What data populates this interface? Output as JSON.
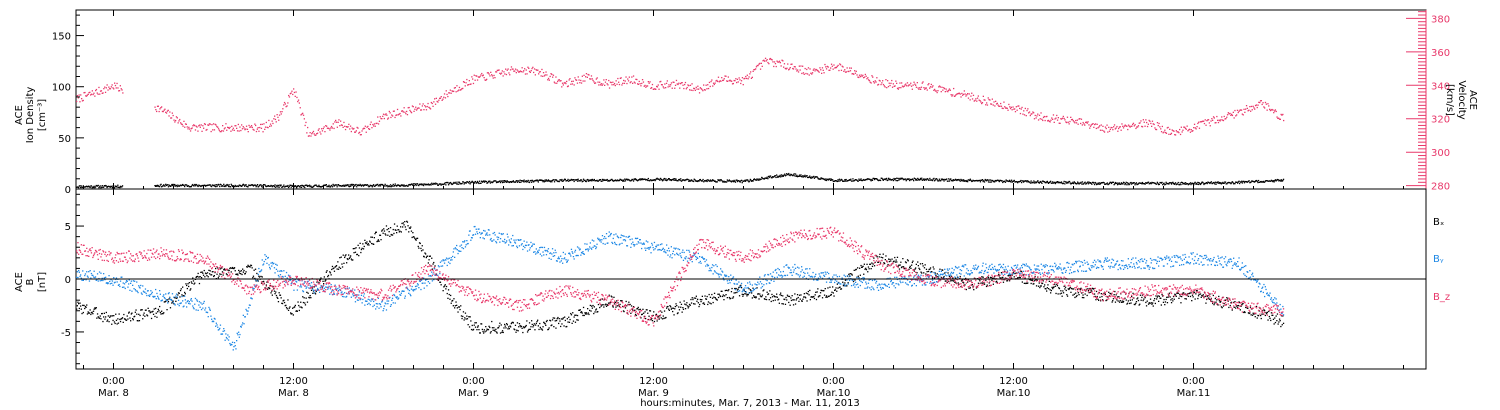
{
  "chart_data": [
    {
      "type": "scatter",
      "panel": "top",
      "ylabel_left": [
        "ACE",
        "Ion Density",
        "[cm⁻³]"
      ],
      "ylabel_right": [
        "ACE",
        "Velocity",
        "[km/s]"
      ],
      "ylim_left": [
        0,
        175
      ],
      "yticks_left": [
        "0",
        "50",
        "100",
        "150"
      ],
      "ylim_right": [
        278,
        385
      ],
      "yticks_right": [
        "280",
        "300",
        "320",
        "340",
        "360",
        "380"
      ],
      "series": [
        {
          "name": "Velocity",
          "axis": "right",
          "color": "#e8386a",
          "x": [
            -2.5,
            0.0,
            3.3,
            5.0,
            7.0,
            10.0,
            11.0,
            12.0,
            13.0,
            15.0,
            16.5,
            18.0,
            19.5,
            21.0,
            22.5,
            24.0,
            25.5,
            27.0,
            28.5,
            30.0,
            31.5,
            33.0,
            34.5,
            36.0,
            37.5,
            39.0,
            40.5,
            42.0,
            43.5,
            45.0,
            46.5,
            48.0,
            49.5,
            51.0,
            52.5,
            54.0,
            55.5,
            57.0,
            58.5,
            60.0,
            61.5,
            63.0,
            64.5,
            66.0,
            67.5,
            69.0,
            70.5,
            72.0,
            73.5,
            75.0,
            76.5,
            78.0
          ],
          "y": [
            332,
            340,
            325,
            315,
            315,
            315,
            322,
            338,
            310,
            318,
            312,
            322,
            325,
            328,
            337,
            344,
            347,
            350,
            348,
            341,
            345,
            341,
            344,
            340,
            341,
            338,
            344,
            343,
            355,
            352,
            348,
            352,
            348,
            342,
            340,
            340,
            337,
            334,
            330,
            327,
            322,
            320,
            318,
            314,
            316,
            318,
            312,
            315,
            320,
            324,
            330,
            320
          ]
        },
        {
          "name": "Ion Density",
          "axis": "left",
          "color": "#000000",
          "x": [
            -2.5,
            0.0,
            3.0,
            6.0,
            9.0,
            12.0,
            15.0,
            18.0,
            21.0,
            24.0,
            27.0,
            30.0,
            33.0,
            36.0,
            39.0,
            42.0,
            45.0,
            48.0,
            51.0,
            54.0,
            57.0,
            60.0,
            63.0,
            66.0,
            69.0,
            72.0,
            75.0,
            78.0
          ],
          "y": [
            3,
            3,
            4,
            4,
            4,
            3,
            4,
            4,
            5,
            7,
            8,
            9,
            9,
            10,
            9,
            8,
            15,
            9,
            10,
            10,
            9,
            8,
            7,
            6,
            6,
            6,
            7,
            9
          ]
        }
      ]
    },
    {
      "type": "scatter",
      "panel": "bottom",
      "ylabel_left": [
        "ACE",
        "B",
        "[nT]"
      ],
      "ylim": [
        -8.5,
        8.5
      ],
      "yticks": [
        "-5",
        "0",
        "5"
      ],
      "legend_position": "right",
      "legend": [
        "Bₓ",
        "Bᵧ",
        "B_z"
      ],
      "series": [
        {
          "name": "Bx",
          "color": "#000000",
          "x": [
            -2.5,
            0.0,
            3.0,
            6.0,
            9.0,
            12.0,
            15.0,
            18.0,
            19.5,
            21.0,
            22.5,
            24.0,
            27.0,
            30.0,
            33.0,
            36.0,
            39.0,
            42.0,
            45.0,
            48.0,
            51.0,
            54.0,
            57.0,
            60.0,
            63.0,
            66.0,
            69.0,
            72.0,
            75.0,
            78.0
          ],
          "y": [
            -2.5,
            -3.8,
            -3.0,
            0.5,
            1.0,
            -3.0,
            1.5,
            4.5,
            5.0,
            2.0,
            -2.0,
            -4.5,
            -4.5,
            -4.0,
            -2.0,
            -3.5,
            -2.0,
            -1.0,
            -2.0,
            -1.0,
            2.0,
            1.0,
            -0.5,
            0.5,
            -1.0,
            -1.5,
            -2.0,
            -1.5,
            -2.5,
            -4.0
          ]
        },
        {
          "name": "By",
          "color": "#1e88e5",
          "x": [
            -2.5,
            0.0,
            3.0,
            6.0,
            8.0,
            10.0,
            12.0,
            15.0,
            18.0,
            21.0,
            24.0,
            27.0,
            30.0,
            33.0,
            36.0,
            39.0,
            42.0,
            45.0,
            48.0,
            51.0,
            54.0,
            57.0,
            60.0,
            63.0,
            66.0,
            69.0,
            72.0,
            75.0,
            78.0
          ],
          "y": [
            0.5,
            0.0,
            -1.5,
            -2.5,
            -6.5,
            2.0,
            -0.5,
            -1.0,
            -2.5,
            0.0,
            4.5,
            3.5,
            2.0,
            4.0,
            3.0,
            2.0,
            -1.0,
            1.0,
            0.0,
            -0.5,
            0.0,
            1.0,
            1.0,
            1.0,
            1.5,
            1.5,
            2.0,
            1.5,
            -3.0
          ]
        },
        {
          "name": "Bz",
          "color": "#e8386a",
          "x": [
            -2.5,
            0.0,
            3.0,
            6.0,
            9.0,
            12.0,
            15.0,
            18.0,
            21.0,
            24.0,
            27.0,
            30.0,
            33.0,
            36.0,
            39.0,
            42.0,
            45.0,
            48.0,
            51.0,
            54.0,
            57.0,
            60.0,
            63.0,
            66.0,
            69.0,
            72.0,
            75.0,
            78.0
          ],
          "y": [
            3.0,
            2.0,
            2.5,
            2.0,
            -1.0,
            0.0,
            -1.0,
            -1.5,
            1.0,
            -1.5,
            -2.5,
            -1.0,
            -2.0,
            -4.0,
            3.5,
            2.0,
            4.0,
            4.5,
            1.5,
            0.0,
            -0.5,
            0.5,
            0.0,
            -1.5,
            -1.0,
            -1.0,
            -2.5,
            -3.0
          ]
        }
      ]
    }
  ],
  "x_axis": {
    "title": "hours:minutes, Mar. 7, 2013 - Mar. 11, 2013",
    "ticks": [
      {
        "h": 0,
        "t1": "0:00",
        "t2": "Mar. 8"
      },
      {
        "h": 12,
        "t1": "12:00",
        "t2": "Mar. 8"
      },
      {
        "h": 24,
        "t1": "0:00",
        "t2": "Mar. 9"
      },
      {
        "h": 36,
        "t1": "12:00",
        "t2": "Mar. 9"
      },
      {
        "h": 48,
        "t1": "0:00",
        "t2": "Mar.10"
      },
      {
        "h": 60,
        "t1": "12:00",
        "t2": "Mar.10"
      },
      {
        "h": 72,
        "t1": "0:00",
        "t2": "Mar.11"
      }
    ],
    "range_hours": [
      -2.5,
      87.5
    ]
  },
  "colors": {
    "velocity": "#e8386a",
    "density": "#000000",
    "bx": "#000000",
    "by": "#1e88e5",
    "bz": "#e8386a"
  }
}
